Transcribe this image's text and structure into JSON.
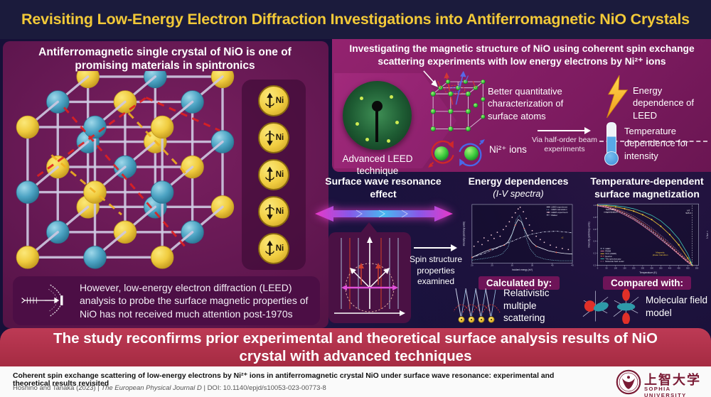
{
  "colors": {
    "title_yellow": "#f2c938",
    "banner_red": "#b23148",
    "panel_purple": "#8e2170",
    "navy_bg": "#161038",
    "sophia_red": "#7a1b35"
  },
  "header": {
    "title": "Revisiting Low-Energy Electron Diffraction Investigations into Antiferromagnetic NiO Crystals"
  },
  "left": {
    "heading": "Antiferromagnetic single crystal of NiO is one of promising materials in spintronics",
    "ni_label": "Ni",
    "ni_spins": [
      "up",
      "down",
      "up",
      "down",
      "up"
    ],
    "problem": "However, low-energy electron diffraction (LEED) analysis to probe the surface magnetic properties of NiO has not received much attention post-1970s"
  },
  "right": {
    "heading": "Investigating the magnetic structure of NiO using coherent spin exchange scattering experiments with low energy electrons by Ni²⁺ ions",
    "leed_caption": "Advanced LEED technique",
    "benefit": "Better quantitative characterization of surface atoms",
    "via": "Via half-order beam experiments",
    "energy_dependence": "Energy dependence of LEED",
    "temperature_dependence": "Temperature dependence for intensity",
    "ions": "Ni²⁺ ions"
  },
  "middle": {
    "srw_heading": "Surface wave resonance effect",
    "spin_structure": "Spin structure properties examined",
    "calculated_badge": "Calculated by:",
    "calculated_label": "Relativistic multiple scattering",
    "compared_badge": "Compared with:",
    "compared_label": "Molecular field model"
  },
  "banner": {
    "text": "The study reconfirms prior experimental and theoretical surface analysis results of NiO crystal with advanced techniques"
  },
  "footer": {
    "paper_title": "Coherent spin exchange scattering of low-energy electrons by Ni²⁺ ions in antiferromagnetic crystal NiO under surface wave resonance: experimental and theoretical results revisited",
    "cite_prefix": "Hoshino and Tanaka (2023) | ",
    "journal": "The European Physical Journal D",
    "cite_suffix": " | DOI: 10.1140/epjd/s10053-023-00773-8",
    "univ_jp": "上智大学",
    "univ_en": "SOPHIA UNIVERSITY"
  },
  "chart_data": [
    {
      "type": "line",
      "title": "Energy dependences",
      "subtitle": "(I-V spectra)",
      "xlabel": "Incident energy (eV)",
      "ylabel": "Intensity (arbitrary units)",
      "xlim": [
        20,
        45
      ],
      "ylim": [
        0,
        1.05
      ],
      "xticks": [
        20,
        25,
        30,
        35,
        40,
        45
      ],
      "legend": "tr",
      "series": [
        {
          "name": "LEED experiment",
          "color": "#e8edf6",
          "marker_color": "#e0584a",
          "marker_every": 3,
          "x": [
            20,
            21.5,
            23,
            24.5,
            26,
            27,
            28,
            29,
            30,
            30.8,
            31.5,
            32.3,
            33,
            34,
            35,
            36,
            37.5,
            39,
            41,
            43,
            45
          ],
          "y": [
            0.1,
            0.15,
            0.2,
            0.24,
            0.27,
            0.3,
            0.32,
            0.38,
            0.52,
            0.68,
            0.78,
            0.74,
            0.62,
            0.46,
            0.36,
            0.3,
            0.26,
            0.22,
            0.19,
            0.17,
            0.16
          ]
        },
        {
          "name": "LEED calculation",
          "color": "#8fd9ea",
          "dash": "1,1.4",
          "x": [
            20,
            22,
            24,
            26,
            27.5,
            29,
            30,
            31,
            31.8,
            32.6,
            33.5,
            34.5,
            36,
            38,
            40,
            42,
            45
          ],
          "y": [
            0.05,
            0.07,
            0.09,
            0.12,
            0.16,
            0.28,
            0.52,
            0.78,
            0.86,
            0.72,
            0.45,
            0.25,
            0.12,
            0.07,
            0.05,
            0.04,
            0.04
          ]
        },
        {
          "name": "LEEM experiment",
          "color": "#f3cbd8",
          "type": "scatter",
          "x": [
            20.5,
            21.5,
            22.5,
            23,
            24,
            24.8,
            25.5,
            26.3,
            27,
            27.8,
            28.5,
            29.3,
            30,
            30.8,
            31.5,
            32,
            32.8,
            33.5,
            34.3,
            35,
            36,
            37,
            38,
            39.5,
            41,
            42.5,
            44
          ],
          "y": [
            0.3,
            0.38,
            0.33,
            0.45,
            0.4,
            0.5,
            0.44,
            0.55,
            0.48,
            0.6,
            0.66,
            0.74,
            0.82,
            0.9,
            0.97,
            1.0,
            0.92,
            0.8,
            0.68,
            0.58,
            0.48,
            0.42,
            0.37,
            0.32,
            0.28,
            0.26,
            0.24
          ]
        },
        {
          "name": "Walker",
          "color": "#d9ddf0",
          "dash": "3,1.2,0.7,1.2",
          "x": [
            20,
            23,
            26,
            29,
            32,
            35,
            38,
            41,
            44,
            45
          ],
          "y": [
            0.1,
            0.17,
            0.26,
            0.36,
            0.45,
            0.52,
            0.56,
            0.57,
            0.55,
            0.54
          ]
        }
      ],
      "annotations": [
        {
          "fx": 0.9,
          "fy": 0.58,
          "text": "x2",
          "color": "#f2c938"
        }
      ]
    },
    {
      "type": "line",
      "title": "Temperature-dependent surface magnetization",
      "xlabel": "Temperature (K)",
      "ylabel": "Intensity (arbitrary units)",
      "ylabel_right": "∝ √Is(T)",
      "xlim": [
        0,
        560
      ],
      "ylim": [
        0,
        1.02
      ],
      "xticks": [
        0,
        50,
        100,
        150,
        200,
        250,
        300,
        350,
        400,
        450,
        500,
        550
      ],
      "yticks": [
        "0.0",
        "0.2",
        "0.4",
        "0.6",
        "0.8",
        "1.0"
      ],
      "legend": "bl",
      "x": [
        0,
        50,
        100,
        150,
        200,
        250,
        300,
        350,
        400,
        450,
        500,
        515,
        525
      ],
      "series": [
        {
          "name": "LEED",
          "color": "#ccd3ea",
          "dash": "2,1.4",
          "y": [
            1.0,
            0.97,
            0.92,
            0.86,
            0.78,
            0.68,
            0.57,
            0.45,
            0.32,
            0.19,
            0.06,
            0.02,
            0.0
          ]
        },
        {
          "name": "PEEM",
          "color": "#e87f9e",
          "y": [
            0.99,
            0.96,
            0.91,
            0.84,
            0.76,
            0.66,
            0.55,
            0.43,
            0.31,
            0.18,
            0.05,
            0.02,
            0.0
          ]
        },
        {
          "name": "Ours (LEED)",
          "color": "#f2c938",
          "marker_color": "#f2c938",
          "marker_every": 1,
          "y": [
            1.0,
            0.99,
            0.97,
            0.94,
            0.9,
            0.84,
            0.76,
            0.65,
            0.51,
            0.34,
            0.12,
            0.05,
            0.0
          ]
        },
        {
          "name": "Neutron",
          "color": "#e0584a",
          "dash": "2.5,1",
          "y": [
            1.0,
            0.98,
            0.93,
            0.87,
            0.79,
            0.7,
            0.59,
            0.47,
            0.34,
            0.2,
            0.07,
            0.03,
            0.0
          ]
        },
        {
          "name": "THz spectroscopy",
          "color": "#3fc4b4",
          "y": [
            1.0,
            1.0,
            0.99,
            0.97,
            0.94,
            0.89,
            0.83,
            0.74,
            0.61,
            0.44,
            0.19,
            0.08,
            0.0
          ]
        },
        {
          "name": "Molecular field model",
          "color": "#f0a8c6",
          "dash": "0.6,1.2",
          "y": [
            0.99,
            0.97,
            0.94,
            0.89,
            0.82,
            0.73,
            0.62,
            0.5,
            0.37,
            0.23,
            0.08,
            0.03,
            0.0
          ]
        }
      ],
      "vlines": [
        525
      ],
      "annotations": [
        {
          "fx": 0.13,
          "fy": 0.1,
          "text": "Saturation\nmagnetization",
          "color": "#ffffff"
        },
        {
          "fx": 0.9,
          "fy": 0.12,
          "text": "NT\n525 K",
          "color": "#ffffff"
        },
        {
          "fx": 0.62,
          "fy": 0.8,
          "text": "Magnetic\nphase transition",
          "color": "#f2c938"
        }
      ]
    }
  ]
}
